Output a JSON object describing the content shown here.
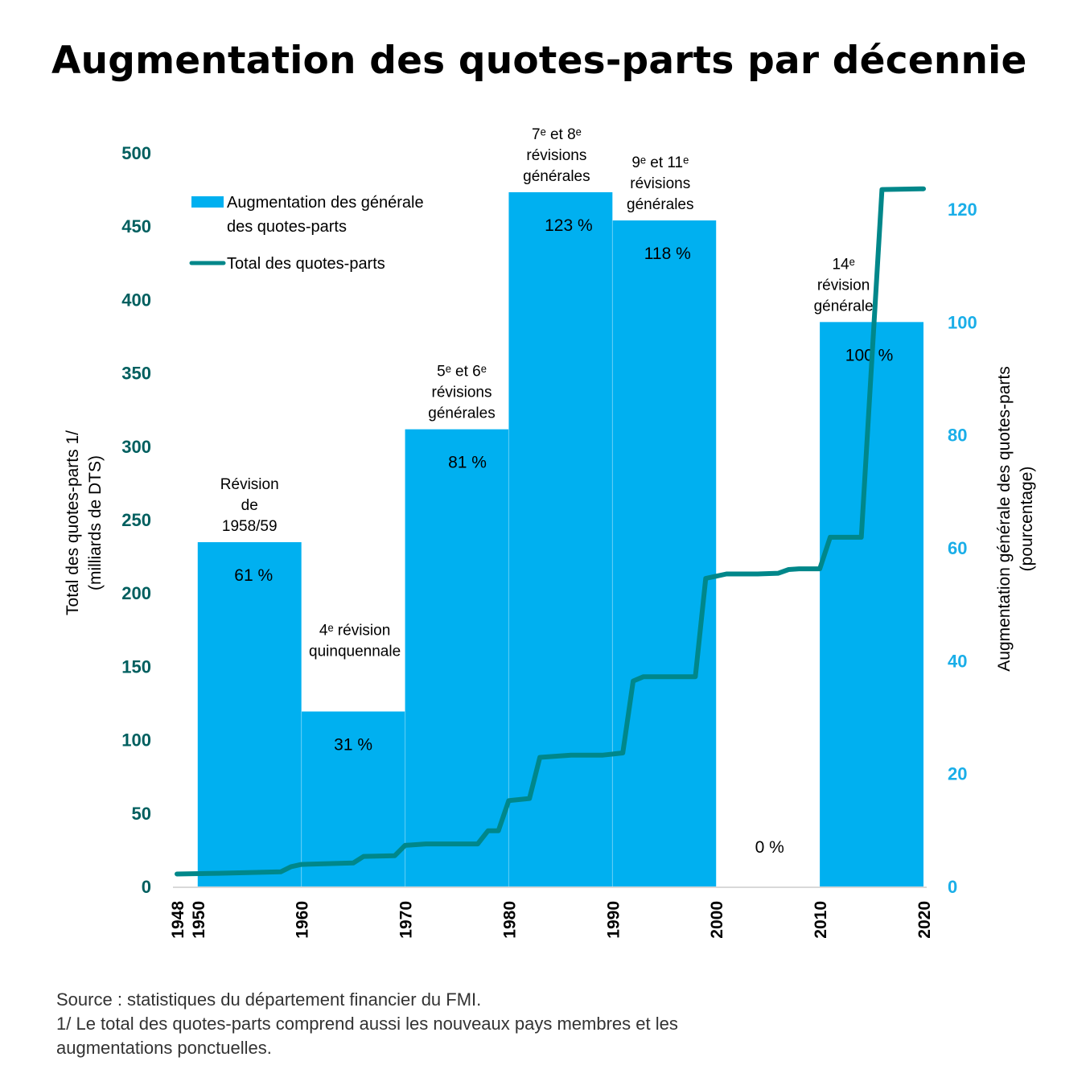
{
  "title": "Augmentation des quotes-parts par décennie",
  "footer": {
    "source": "Source : statistiques du département financier du FMI.",
    "note_line1": "1/ Le total des quotes-parts comprend aussi les nouveaux pays membres et les",
    "note_line2": "augmentations ponctuelles."
  },
  "colors": {
    "bars": "#00b0f0",
    "line": "#00878a",
    "left_axis": "#005f5f",
    "right_axis": "#1aaee8",
    "axis_line": "#d9d9d9",
    "text": "#000000"
  },
  "chart_data": {
    "type": "bar+line",
    "title": "Augmentation des quotes-parts par décennie",
    "left_axis": {
      "label_line1": "Total des quotes-parts 1/",
      "label_line2": "(milliards de DTS)",
      "range": [
        0,
        500
      ],
      "ticks": [
        0,
        50,
        100,
        150,
        200,
        250,
        300,
        350,
        400,
        450,
        500
      ]
    },
    "right_axis": {
      "label_line1": "Augmentation générale des quotes-parts",
      "label_line2": "(pourcentage)",
      "range": [
        0,
        120
      ],
      "ticks": [
        0,
        20,
        40,
        60,
        80,
        100,
        120
      ]
    },
    "x_axis": {
      "range": [
        1948,
        2020
      ],
      "ticks": [
        1948,
        1950,
        1960,
        1970,
        1980,
        1990,
        2000,
        2010,
        2020
      ]
    },
    "legend": {
      "position": "top-left",
      "bar_label_line1": "Augmentation des générale",
      "bar_label_line2": "des quotes-parts",
      "line_label": "Total des quotes-parts"
    },
    "bars": [
      {
        "start": 1950,
        "end": 1960,
        "value": 61,
        "value_label": "61 %",
        "annotation": [
          "Révision",
          "de",
          "1958/59"
        ]
      },
      {
        "start": 1960,
        "end": 1970,
        "value": 31,
        "value_label": "31 %",
        "annotation": [
          "4ᵉ  révision",
          "quinquennale"
        ]
      },
      {
        "start": 1970,
        "end": 1980,
        "value": 81,
        "value_label": "81 %",
        "annotation": [
          "5ᵉ et 6ᵉ",
          "révisions",
          "générales"
        ]
      },
      {
        "start": 1980,
        "end": 1990,
        "value": 123,
        "value_label": "123 %",
        "annotation": [
          "7ᵉ et 8ᵉ",
          "révisions",
          "générales"
        ]
      },
      {
        "start": 1990,
        "end": 2000,
        "value": 118,
        "value_label": "118 %",
        "annotation": [
          "9ᵉ et 11ᵉ",
          "révisions",
          "générales"
        ]
      },
      {
        "start": 2000,
        "end": 2010,
        "value": 0,
        "value_label": "0 %",
        "annotation": []
      },
      {
        "start": 2010,
        "end": 2020,
        "value": 100,
        "value_label": "100 %",
        "annotation": [
          "14ᵉ",
          "révision",
          "générale"
        ]
      }
    ],
    "series": [
      {
        "name": "Total des quotes-parts",
        "x": [
          1948,
          1952,
          1958,
          1959,
          1960,
          1965,
          1966,
          1969,
          1970,
          1972,
          1977,
          1978,
          1979,
          1980,
          1982,
          1983,
          1986,
          1989,
          1991,
          1992,
          1993,
          1998,
          1999,
          2001,
          2004,
          2006,
          2007,
          2008,
          2010,
          2011,
          2014,
          2016,
          2020
        ],
        "values": [
          8.5,
          9,
          10,
          13.5,
          15,
          16,
          20.5,
          21,
          28,
          29,
          29,
          38,
          38,
          58.5,
          60,
          88,
          89.5,
          89.5,
          91,
          140,
          143,
          143,
          210,
          213,
          213,
          213.5,
          216,
          216.5,
          216.5,
          238,
          238,
          475,
          475.5
        ]
      }
    ]
  }
}
